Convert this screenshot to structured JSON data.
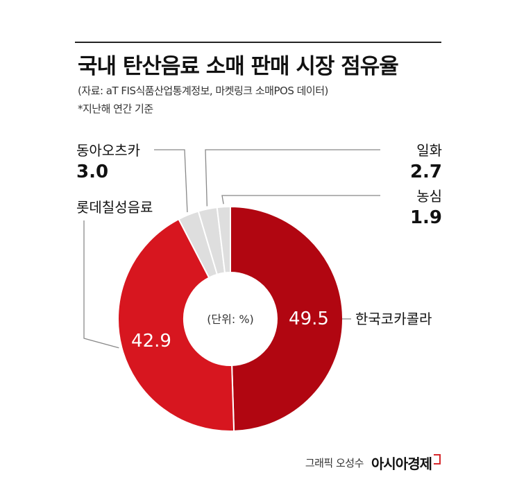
{
  "title": "국내 탄산음료 소매 판매 시장 점유율",
  "source": "(자료: aT FIS식품산업통계정보, 마켓링크 소매POS 데이터)",
  "note": "*지난해 연간 기준",
  "chart_data": {
    "type": "pie",
    "variant": "donut",
    "unit_label": "(단위: %)",
    "categories": [
      "한국코카콜라",
      "롯데칠성음료",
      "동아오츠카",
      "일화",
      "농심"
    ],
    "values": [
      49.5,
      42.9,
      3.0,
      2.7,
      1.9
    ],
    "colors": [
      "#b10611",
      "#d7161f",
      "#dedede",
      "#dedede",
      "#dedede"
    ],
    "value_labels": [
      "49.5",
      "42.9",
      "3.0",
      "2.7",
      "1.9"
    ]
  },
  "footer": {
    "credit": "그래픽 오성수",
    "brand": "아시아경제"
  }
}
